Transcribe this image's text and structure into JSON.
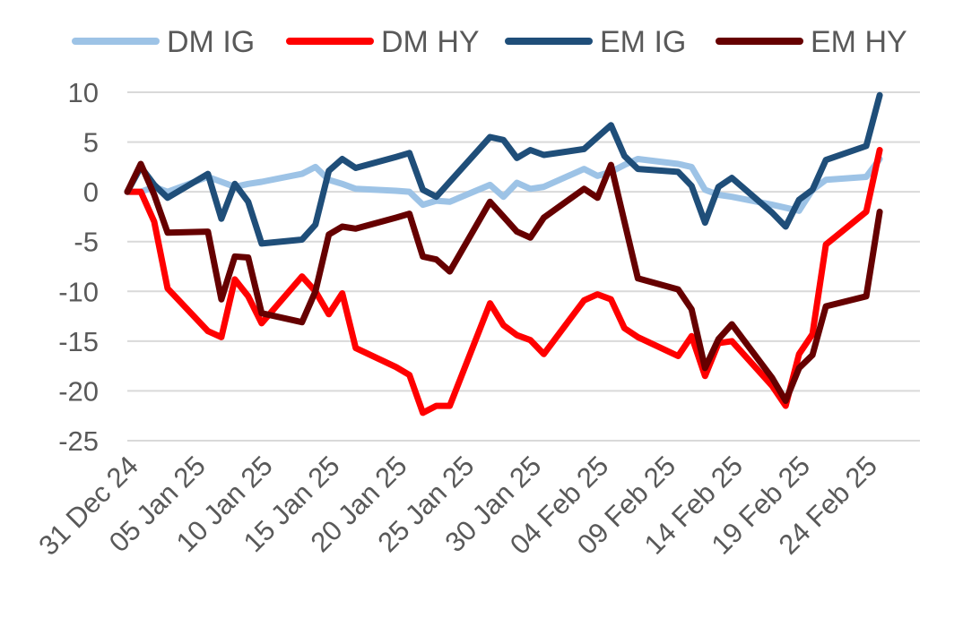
{
  "chart_data": {
    "type": "line",
    "title": "",
    "xlabel": "",
    "ylabel": "",
    "ylim": [
      -25,
      10
    ],
    "yticks": [
      10,
      5,
      0,
      -5,
      -10,
      -15,
      -20,
      -25
    ],
    "ytick_labels": [
      "10",
      "5",
      "0",
      "-5",
      "-10",
      "-15",
      "-20",
      "-25"
    ],
    "grid": true,
    "legend_position": "top",
    "x_type": "date",
    "x_range": [
      "2024-12-31",
      "2025-02-28"
    ],
    "x_tick_dates": [
      "2024-12-31",
      "2025-01-05",
      "2025-01-10",
      "2025-01-15",
      "2025-01-20",
      "2025-01-25",
      "2025-01-30",
      "2025-02-04",
      "2025-02-09",
      "2025-02-14",
      "2025-02-19",
      "2025-02-24"
    ],
    "x_tick_labels": [
      "31 Dec 24",
      "05 Jan 25",
      "10 Jan 25",
      "15 Jan 25",
      "20 Jan 25",
      "25 Jan 25",
      "30 Jan 25",
      "04 Feb 25",
      "09 Feb 25",
      "14 Feb 25",
      "19 Feb 25",
      "24 Feb 25"
    ],
    "series": [
      {
        "name": "DM IG",
        "color": "#9dc3e6",
        "points": [
          [
            "2024-12-31",
            0.0
          ],
          [
            "2025-01-01",
            0.0
          ],
          [
            "2025-01-02",
            0.5
          ],
          [
            "2025-01-03",
            0.0
          ],
          [
            "2025-01-06",
            1.5
          ],
          [
            "2025-01-07",
            1.0
          ],
          [
            "2025-01-08",
            0.5
          ],
          [
            "2025-01-09",
            0.8
          ],
          [
            "2025-01-10",
            1.0
          ],
          [
            "2025-01-13",
            1.8
          ],
          [
            "2025-01-14",
            2.5
          ],
          [
            "2025-01-15",
            1.2
          ],
          [
            "2025-01-16",
            0.8
          ],
          [
            "2025-01-17",
            0.3
          ],
          [
            "2025-01-20",
            0.1
          ],
          [
            "2025-01-21",
            0.0
          ],
          [
            "2025-01-22",
            -1.3
          ],
          [
            "2025-01-23",
            -0.9
          ],
          [
            "2025-01-24",
            -1.0
          ],
          [
            "2025-01-27",
            0.7
          ],
          [
            "2025-01-28",
            -0.5
          ],
          [
            "2025-01-29",
            0.9
          ],
          [
            "2025-01-30",
            0.3
          ],
          [
            "2025-01-31",
            0.5
          ],
          [
            "2025-02-03",
            2.3
          ],
          [
            "2025-02-04",
            1.6
          ],
          [
            "2025-02-05",
            2.0
          ],
          [
            "2025-02-06",
            2.7
          ],
          [
            "2025-02-07",
            3.3
          ],
          [
            "2025-02-10",
            2.8
          ],
          [
            "2025-02-11",
            2.5
          ],
          [
            "2025-02-12",
            0.2
          ],
          [
            "2025-02-13",
            -0.3
          ],
          [
            "2025-02-14",
            -0.5
          ],
          [
            "2025-02-17",
            -1.3
          ],
          [
            "2025-02-18",
            -1.6
          ],
          [
            "2025-02-19",
            -1.9
          ],
          [
            "2025-02-20",
            0.2
          ],
          [
            "2025-02-21",
            1.2
          ],
          [
            "2025-02-24",
            1.5
          ],
          [
            "2025-02-25",
            3.3
          ]
        ]
      },
      {
        "name": "DM HY",
        "color": "#ff0000",
        "points": [
          [
            "2024-12-31",
            0.0
          ],
          [
            "2025-01-01",
            0.0
          ],
          [
            "2025-01-02",
            -3.0
          ],
          [
            "2025-01-03",
            -9.7
          ],
          [
            "2025-01-06",
            -14.0
          ],
          [
            "2025-01-07",
            -14.6
          ],
          [
            "2025-01-08",
            -8.8
          ],
          [
            "2025-01-09",
            -10.5
          ],
          [
            "2025-01-10",
            -13.2
          ],
          [
            "2025-01-13",
            -8.5
          ],
          [
            "2025-01-14",
            -10.0
          ],
          [
            "2025-01-15",
            -12.3
          ],
          [
            "2025-01-16",
            -10.2
          ],
          [
            "2025-01-17",
            -15.7
          ],
          [
            "2025-01-20",
            -17.6
          ],
          [
            "2025-01-21",
            -18.4
          ],
          [
            "2025-01-22",
            -22.2
          ],
          [
            "2025-01-23",
            -21.5
          ],
          [
            "2025-01-24",
            -21.5
          ],
          [
            "2025-01-27",
            -11.2
          ],
          [
            "2025-01-28",
            -13.4
          ],
          [
            "2025-01-29",
            -14.4
          ],
          [
            "2025-01-30",
            -14.9
          ],
          [
            "2025-01-31",
            -16.3
          ],
          [
            "2025-02-03",
            -10.9
          ],
          [
            "2025-02-04",
            -10.3
          ],
          [
            "2025-02-05",
            -10.8
          ],
          [
            "2025-02-06",
            -13.7
          ],
          [
            "2025-02-07",
            -14.6
          ],
          [
            "2025-02-10",
            -16.5
          ],
          [
            "2025-02-11",
            -14.5
          ],
          [
            "2025-02-12",
            -18.5
          ],
          [
            "2025-02-13",
            -15.2
          ],
          [
            "2025-02-14",
            -15.0
          ],
          [
            "2025-02-17",
            -19.5
          ],
          [
            "2025-02-18",
            -21.5
          ],
          [
            "2025-02-19",
            -16.3
          ],
          [
            "2025-02-20",
            -14.3
          ],
          [
            "2025-02-21",
            -5.3
          ],
          [
            "2025-02-24",
            -2.0
          ],
          [
            "2025-02-25",
            4.2
          ]
        ]
      },
      {
        "name": "EM IG",
        "color": "#1f4e79",
        "points": [
          [
            "2024-12-31",
            0.0
          ],
          [
            "2025-01-01",
            2.5
          ],
          [
            "2025-01-02",
            0.7
          ],
          [
            "2025-01-03",
            -0.6
          ],
          [
            "2025-01-06",
            1.8
          ],
          [
            "2025-01-07",
            -2.7
          ],
          [
            "2025-01-08",
            0.8
          ],
          [
            "2025-01-09",
            -1.0
          ],
          [
            "2025-01-10",
            -5.2
          ],
          [
            "2025-01-13",
            -4.8
          ],
          [
            "2025-01-14",
            -3.3
          ],
          [
            "2025-01-15",
            2.1
          ],
          [
            "2025-01-16",
            3.3
          ],
          [
            "2025-01-17",
            2.4
          ],
          [
            "2025-01-20",
            3.5
          ],
          [
            "2025-01-21",
            3.9
          ],
          [
            "2025-01-22",
            0.2
          ],
          [
            "2025-01-23",
            -0.5
          ],
          [
            "2025-01-24",
            1.0
          ],
          [
            "2025-01-27",
            5.5
          ],
          [
            "2025-01-28",
            5.2
          ],
          [
            "2025-01-29",
            3.4
          ],
          [
            "2025-01-30",
            4.2
          ],
          [
            "2025-01-31",
            3.7
          ],
          [
            "2025-02-03",
            4.3
          ],
          [
            "2025-02-04",
            5.5
          ],
          [
            "2025-02-05",
            6.7
          ],
          [
            "2025-02-06",
            3.6
          ],
          [
            "2025-02-07",
            2.3
          ],
          [
            "2025-02-10",
            2.0
          ],
          [
            "2025-02-11",
            0.6
          ],
          [
            "2025-02-12",
            -3.1
          ],
          [
            "2025-02-13",
            0.5
          ],
          [
            "2025-02-14",
            1.4
          ],
          [
            "2025-02-17",
            -2.1
          ],
          [
            "2025-02-18",
            -3.5
          ],
          [
            "2025-02-19",
            -0.8
          ],
          [
            "2025-02-20",
            0.2
          ],
          [
            "2025-02-21",
            3.2
          ],
          [
            "2025-02-24",
            4.6
          ],
          [
            "2025-02-25",
            9.7
          ]
        ]
      },
      {
        "name": "EM HY",
        "color": "#660000",
        "points": [
          [
            "2024-12-31",
            0.0
          ],
          [
            "2025-01-01",
            2.8
          ],
          [
            "2025-01-02",
            -0.3
          ],
          [
            "2025-01-03",
            -4.1
          ],
          [
            "2025-01-06",
            -4.0
          ],
          [
            "2025-01-07",
            -10.8
          ],
          [
            "2025-01-08",
            -6.5
          ],
          [
            "2025-01-09",
            -6.6
          ],
          [
            "2025-01-10",
            -12.2
          ],
          [
            "2025-01-13",
            -13.1
          ],
          [
            "2025-01-14",
            -10.0
          ],
          [
            "2025-01-15",
            -4.3
          ],
          [
            "2025-01-16",
            -3.5
          ],
          [
            "2025-01-17",
            -3.7
          ],
          [
            "2025-01-20",
            -2.6
          ],
          [
            "2025-01-21",
            -2.2
          ],
          [
            "2025-01-22",
            -6.5
          ],
          [
            "2025-01-23",
            -6.8
          ],
          [
            "2025-01-24",
            -8.0
          ],
          [
            "2025-01-27",
            -1.0
          ],
          [
            "2025-01-28",
            -2.5
          ],
          [
            "2025-01-29",
            -4.0
          ],
          [
            "2025-01-30",
            -4.6
          ],
          [
            "2025-01-31",
            -2.6
          ],
          [
            "2025-02-03",
            0.3
          ],
          [
            "2025-02-04",
            -0.6
          ],
          [
            "2025-02-05",
            2.7
          ],
          [
            "2025-02-06",
            -3.0
          ],
          [
            "2025-02-07",
            -8.7
          ],
          [
            "2025-02-10",
            -9.8
          ],
          [
            "2025-02-11",
            -11.8
          ],
          [
            "2025-02-12",
            -17.7
          ],
          [
            "2025-02-13",
            -14.8
          ],
          [
            "2025-02-14",
            -13.3
          ],
          [
            "2025-02-17",
            -18.7
          ],
          [
            "2025-02-18",
            -21.0
          ],
          [
            "2025-02-19",
            -17.7
          ],
          [
            "2025-02-20",
            -16.4
          ],
          [
            "2025-02-21",
            -11.5
          ],
          [
            "2025-02-24",
            -10.5
          ],
          [
            "2025-02-25",
            -2.0
          ]
        ]
      }
    ]
  }
}
